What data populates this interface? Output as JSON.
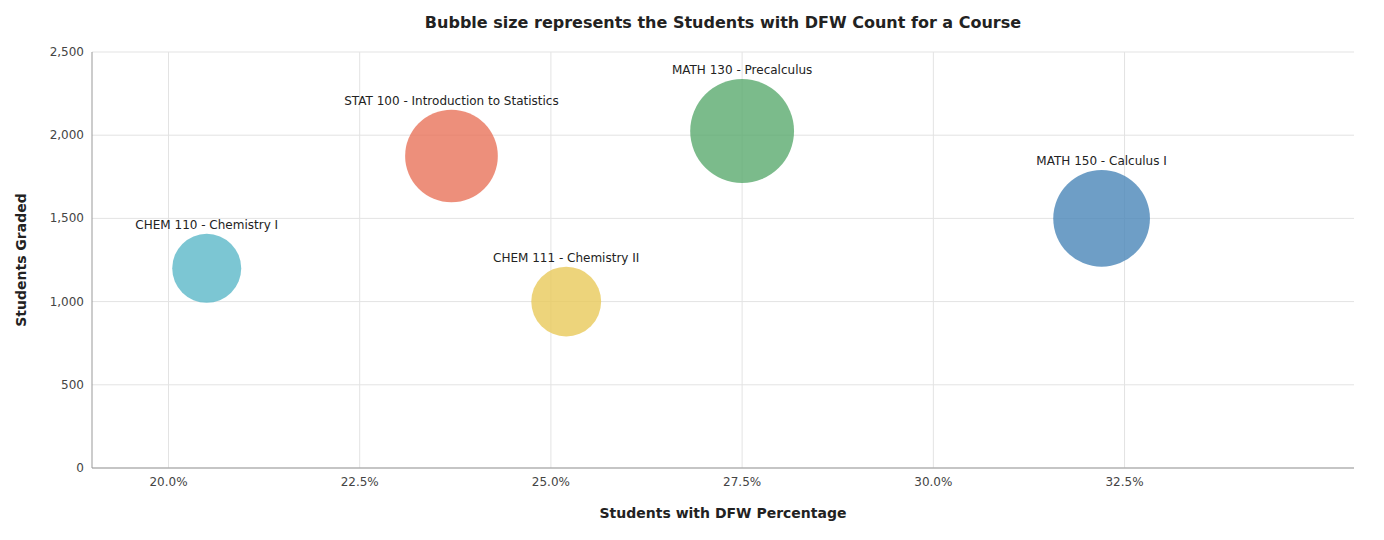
{
  "chart_data": {
    "type": "bubble",
    "title": "Bubble size represents the Students with DFW Count for a Course",
    "xlabel": "Students with DFW Percentage",
    "ylabel": "Students Graded",
    "x": [
      0.205,
      0.237,
      0.252,
      0.275,
      0.322
    ],
    "values": [
      1200,
      1875,
      1000,
      2025,
      1500
    ],
    "sizes": [
      246,
      444,
      252,
      557,
      483
    ],
    "colors": [
      "#5bb8c8",
      "#e8735a",
      "#e8c95a",
      "#5aaa6e",
      "#4a86b8"
    ],
    "annotations": [
      "CHEM 110 - Chemistry I",
      "STAT 100 - Introduction to Statistics",
      "CHEM 111 - Chemistry II",
      "MATH 130 - Precalculus",
      "MATH 150 - Calculus I"
    ],
    "xlim": [
      0.19,
      0.355
    ],
    "ylim": [
      0,
      2500
    ],
    "xticks": [
      {
        "value": 0.2,
        "label": "20.0%"
      },
      {
        "value": 0.225,
        "label": "22.5%"
      },
      {
        "value": 0.25,
        "label": "25.0%"
      },
      {
        "value": 0.275,
        "label": "27.5%"
      },
      {
        "value": 0.3,
        "label": "30.0%"
      },
      {
        "value": 0.325,
        "label": "32.5%"
      }
    ],
    "yticks": [
      0,
      500,
      {
        "value": 1000,
        "label": "1,000"
      },
      {
        "value": 1500,
        "label": "1,500"
      },
      {
        "value": 2000,
        "label": "2,000"
      },
      {
        "value": 2500,
        "label": "2,500"
      }
    ],
    "grid": true
  }
}
